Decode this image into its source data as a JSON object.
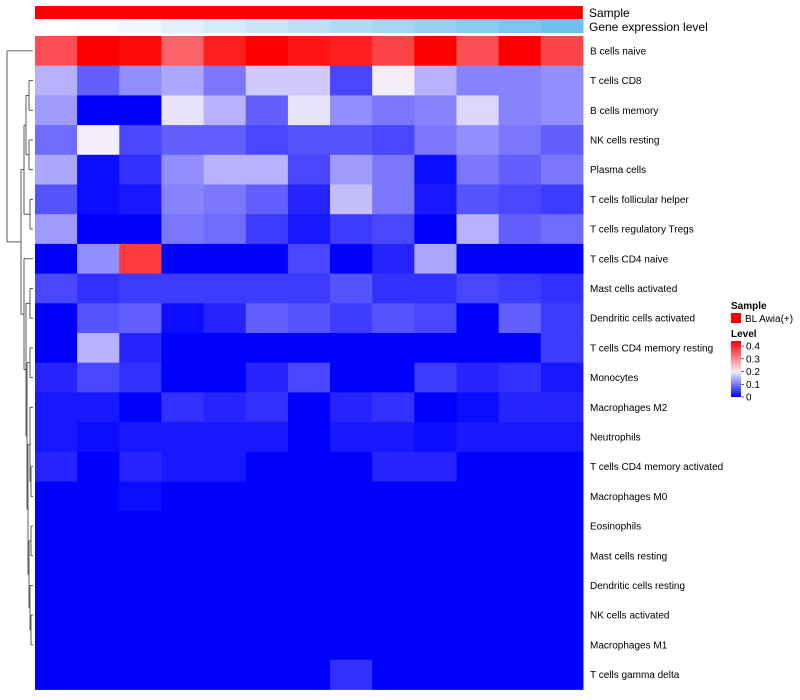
{
  "chart_data": {
    "type": "heatmap",
    "title": "",
    "annotation_tracks": [
      "Sample",
      "Gene expression level"
    ],
    "annotation_colors": {
      "sample": "#ff0000",
      "expression_level": [
        "#ffffff",
        "#fbfcfe",
        "#f1f6fb",
        "#e3f0f9",
        "#d6ebf8",
        "#c9e5f6",
        "#bde0f5",
        "#b0dbf5",
        "#a4d6f4",
        "#97d1f3",
        "#8acbf1",
        "#7ec6f1",
        "#70c1f0"
      ]
    },
    "columns": 13,
    "rows": [
      "B cells naive",
      "T cells CD8",
      "B cells memory",
      "NK cells resting",
      "Plasma cells",
      "T cells follicular helper",
      "T cells regulatory  Tregs",
      "T cells CD4 naive",
      "Mast cells activated",
      "Dendritic cells activated",
      "T cells CD4 memory resting",
      "Monocytes",
      "Macrophages M2",
      "Neutrophils",
      "T cells CD4 memory activated",
      "Macrophages M0",
      "Eosinophils",
      "Mast cells resting",
      "Dendritic cells resting",
      "NK cells activated",
      "Macrophages M1",
      "T cells gamma delta"
    ],
    "values": [
      [
        0.36,
        0.44,
        0.43,
        0.34,
        0.41,
        0.44,
        0.42,
        0.41,
        0.37,
        0.44,
        0.36,
        0.44,
        0.37
      ],
      [
        0.15,
        0.08,
        0.12,
        0.14,
        0.1,
        0.17,
        0.17,
        0.06,
        0.2,
        0.15,
        0.11,
        0.11,
        0.12
      ],
      [
        0.13,
        0.0,
        0.0,
        0.19,
        0.15,
        0.08,
        0.19,
        0.12,
        0.1,
        0.11,
        0.18,
        0.11,
        0.12
      ],
      [
        0.09,
        0.2,
        0.06,
        0.08,
        0.08,
        0.06,
        0.07,
        0.07,
        0.06,
        0.1,
        0.12,
        0.1,
        0.08
      ],
      [
        0.14,
        0.01,
        0.04,
        0.12,
        0.15,
        0.15,
        0.06,
        0.13,
        0.1,
        0.01,
        0.1,
        0.08,
        0.1
      ],
      [
        0.07,
        0.01,
        0.02,
        0.11,
        0.1,
        0.08,
        0.03,
        0.16,
        0.1,
        0.02,
        0.07,
        0.06,
        0.05
      ],
      [
        0.13,
        0.0,
        0.0,
        0.1,
        0.09,
        0.05,
        0.02,
        0.05,
        0.06,
        0.0,
        0.15,
        0.08,
        0.09
      ],
      [
        0.0,
        0.12,
        0.38,
        0.0,
        0.0,
        0.0,
        0.06,
        0.0,
        0.03,
        0.14,
        0.0,
        0.0,
        0.0
      ],
      [
        0.06,
        0.04,
        0.05,
        0.05,
        0.05,
        0.05,
        0.05,
        0.07,
        0.04,
        0.04,
        0.06,
        0.05,
        0.04
      ],
      [
        0.0,
        0.07,
        0.08,
        0.01,
        0.03,
        0.08,
        0.07,
        0.05,
        0.07,
        0.06,
        0.0,
        0.08,
        0.05
      ],
      [
        0.0,
        0.15,
        0.03,
        0.0,
        0.0,
        0.0,
        0.0,
        0.0,
        0.0,
        0.0,
        0.0,
        0.0,
        0.05
      ],
      [
        0.03,
        0.06,
        0.04,
        0.0,
        0.0,
        0.03,
        0.06,
        0.0,
        0.0,
        0.05,
        0.03,
        0.04,
        0.02
      ],
      [
        0.02,
        0.02,
        0.0,
        0.04,
        0.03,
        0.04,
        0.0,
        0.03,
        0.04,
        0.0,
        0.01,
        0.03,
        0.03
      ],
      [
        0.02,
        0.01,
        0.02,
        0.02,
        0.02,
        0.02,
        0.0,
        0.02,
        0.02,
        0.01,
        0.02,
        0.02,
        0.02
      ],
      [
        0.03,
        0.0,
        0.03,
        0.02,
        0.02,
        0.0,
        0.0,
        0.0,
        0.03,
        0.03,
        0.0,
        0.0,
        0.0
      ],
      [
        0.0,
        0.0,
        0.01,
        0.0,
        0.0,
        0.0,
        0.0,
        0.0,
        0.0,
        0.0,
        0.0,
        0.0,
        0.0
      ],
      [
        0.0,
        0.0,
        0.0,
        0.0,
        0.0,
        0.0,
        0.0,
        0.0,
        0.0,
        0.0,
        0.0,
        0.0,
        0.0
      ],
      [
        0.0,
        0.0,
        0.0,
        0.0,
        0.0,
        0.0,
        0.0,
        0.0,
        0.0,
        0.0,
        0.0,
        0.0,
        0.0
      ],
      [
        0.0,
        0.0,
        0.0,
        0.0,
        0.0,
        0.0,
        0.0,
        0.0,
        0.0,
        0.0,
        0.0,
        0.0,
        0.0
      ],
      [
        0.0,
        0.0,
        0.0,
        0.0,
        0.0,
        0.0,
        0.0,
        0.0,
        0.0,
        0.0,
        0.0,
        0.0,
        0.0
      ],
      [
        0.0,
        0.0,
        0.0,
        0.0,
        0.0,
        0.0,
        0.0,
        0.0,
        0.0,
        0.0,
        0.0,
        0.0,
        0.0
      ],
      [
        0.0,
        0.0,
        0.0,
        0.0,
        0.0,
        0.0,
        0.0,
        0.04,
        0.0,
        0.0,
        0.0,
        0.0,
        0.0
      ]
    ],
    "color_scale": {
      "min": 0,
      "max": 0.44,
      "stops": [
        {
          "value": 0.0,
          "color": "#0000ff"
        },
        {
          "value": 0.2,
          "color": "#f4eefa"
        },
        {
          "value": 0.44,
          "color": "#ff0000"
        }
      ]
    },
    "legend": {
      "placement": "right",
      "sample": {
        "title": "Sample",
        "entry": "BL Awia(+)",
        "color": "#ff0000"
      },
      "level": {
        "title": "Level",
        "ticks": [
          0.4,
          0.3,
          0.2,
          0.1,
          0
        ],
        "tick_labels": [
          "0.4",
          "0.3",
          "0.2",
          "0.1",
          "0"
        ]
      }
    },
    "row_dendrogram": true,
    "column_dendrogram": false
  }
}
